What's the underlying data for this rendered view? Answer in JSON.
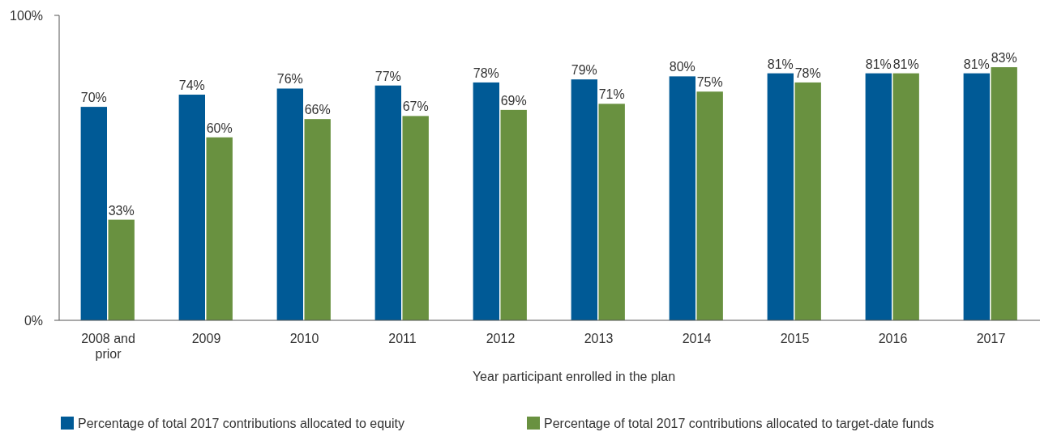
{
  "chart_data": {
    "type": "bar",
    "xlabel": "Year participant enrolled in the plan",
    "categories": [
      "2008 and prior",
      "2009",
      "2010",
      "2011",
      "2012",
      "2013",
      "2014",
      "2015",
      "2016",
      "2017"
    ],
    "series": [
      {
        "name": "Percentage of total 2017 contributions allocated to equity",
        "color": "#005a96",
        "values": [
          70,
          74,
          76,
          77,
          78,
          79,
          80,
          81,
          81,
          81
        ],
        "value_labels": [
          "70%",
          "74%",
          "76%",
          "77%",
          "78%",
          "79%",
          "80%",
          "81%",
          "81%",
          "81%"
        ]
      },
      {
        "name": "Percentage of total 2017 contributions allocated to target-date funds",
        "color": "#699140",
        "values": [
          33,
          60,
          66,
          67,
          69,
          71,
          75,
          78,
          81,
          83
        ],
        "value_labels": [
          "33%",
          "60%",
          "66%",
          "67%",
          "69%",
          "71%",
          "75%",
          "78%",
          "81%",
          "83%"
        ]
      }
    ],
    "ylim": [
      0,
      100
    ],
    "yticks": [
      {
        "value": 0,
        "label": "0%"
      },
      {
        "value": 100,
        "label": "100%"
      }
    ],
    "grid": false,
    "legend": "bottom"
  }
}
